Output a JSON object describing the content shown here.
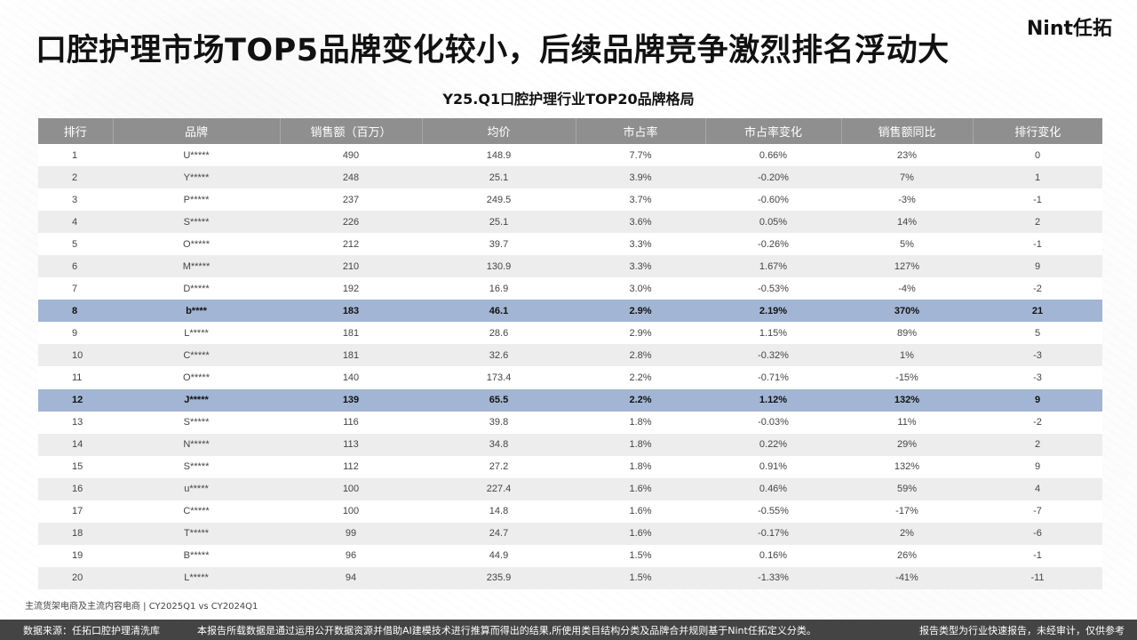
{
  "headline": "口腔护理市场TOP5品牌变化较小，后续品牌竞争激烈排名浮动大",
  "logo": "Nint任拓",
  "table_title": "Y25.Q1口腔护理行业TOP20品牌格局",
  "columns": [
    "排行",
    "品牌",
    "销售额（百万）",
    "均价",
    "市占率",
    "市占率变化",
    "销售额同比",
    "排行变化"
  ],
  "rows": [
    {
      "rank": "1",
      "brand": "U*****",
      "sales": "490",
      "price": "148.9",
      "share": "7.7%",
      "share_change": "0.66%",
      "yoy": "23%",
      "rank_change": "0"
    },
    {
      "rank": "2",
      "brand": "Y*****",
      "sales": "248",
      "price": "25.1",
      "share": "3.9%",
      "share_change": "-0.20%",
      "yoy": "7%",
      "rank_change": "1"
    },
    {
      "rank": "3",
      "brand": "P*****",
      "sales": "237",
      "price": "249.5",
      "share": "3.7%",
      "share_change": "-0.60%",
      "yoy": "-3%",
      "rank_change": "-1"
    },
    {
      "rank": "4",
      "brand": "S*****",
      "sales": "226",
      "price": "25.1",
      "share": "3.6%",
      "share_change": "0.05%",
      "yoy": "14%",
      "rank_change": "2"
    },
    {
      "rank": "5",
      "brand": "O*****",
      "sales": "212",
      "price": "39.7",
      "share": "3.3%",
      "share_change": "-0.26%",
      "yoy": "5%",
      "rank_change": "-1"
    },
    {
      "rank": "6",
      "brand": "M*****",
      "sales": "210",
      "price": "130.9",
      "share": "3.3%",
      "share_change": "1.67%",
      "yoy": "127%",
      "rank_change": "9"
    },
    {
      "rank": "7",
      "brand": "D*****",
      "sales": "192",
      "price": "16.9",
      "share": "3.0%",
      "share_change": "-0.53%",
      "yoy": "-4%",
      "rank_change": "-2"
    },
    {
      "rank": "8",
      "brand": "b****",
      "sales": "183",
      "price": "46.1",
      "share": "2.9%",
      "share_change": "2.19%",
      "yoy": "370%",
      "rank_change": "21",
      "highlight": true
    },
    {
      "rank": "9",
      "brand": "L*****",
      "sales": "181",
      "price": "28.6",
      "share": "2.9%",
      "share_change": "1.15%",
      "yoy": "89%",
      "rank_change": "5"
    },
    {
      "rank": "10",
      "brand": "C*****",
      "sales": "181",
      "price": "32.6",
      "share": "2.8%",
      "share_change": "-0.32%",
      "yoy": "1%",
      "rank_change": "-3"
    },
    {
      "rank": "11",
      "brand": "O*****",
      "sales": "140",
      "price": "173.4",
      "share": "2.2%",
      "share_change": "-0.71%",
      "yoy": "-15%",
      "rank_change": "-3"
    },
    {
      "rank": "12",
      "brand": "J*****",
      "sales": "139",
      "price": "65.5",
      "share": "2.2%",
      "share_change": "1.12%",
      "yoy": "132%",
      "rank_change": "9",
      "highlight": true
    },
    {
      "rank": "13",
      "brand": "S*****",
      "sales": "116",
      "price": "39.8",
      "share": "1.8%",
      "share_change": "-0.03%",
      "yoy": "11%",
      "rank_change": "-2"
    },
    {
      "rank": "14",
      "brand": "N*****",
      "sales": "113",
      "price": "34.8",
      "share": "1.8%",
      "share_change": "0.22%",
      "yoy": "29%",
      "rank_change": "2"
    },
    {
      "rank": "15",
      "brand": "S*****",
      "sales": "112",
      "price": "27.2",
      "share": "1.8%",
      "share_change": "0.91%",
      "yoy": "132%",
      "rank_change": "9"
    },
    {
      "rank": "16",
      "brand": "u*****",
      "sales": "100",
      "price": "227.4",
      "share": "1.6%",
      "share_change": "0.46%",
      "yoy": "59%",
      "rank_change": "4"
    },
    {
      "rank": "17",
      "brand": "C*****",
      "sales": "100",
      "price": "14.8",
      "share": "1.6%",
      "share_change": "-0.55%",
      "yoy": "-17%",
      "rank_change": "-7"
    },
    {
      "rank": "18",
      "brand": "T*****",
      "sales": "99",
      "price": "24.7",
      "share": "1.6%",
      "share_change": "-0.17%",
      "yoy": "2%",
      "rank_change": "-6"
    },
    {
      "rank": "19",
      "brand": "B*****",
      "sales": "96",
      "price": "44.9",
      "share": "1.5%",
      "share_change": "0.16%",
      "yoy": "26%",
      "rank_change": "-1"
    },
    {
      "rank": "20",
      "brand": "L*****",
      "sales": "94",
      "price": "235.9",
      "share": "1.5%",
      "share_change": "-1.33%",
      "yoy": "-41%",
      "rank_change": "-11"
    }
  ],
  "footnote": "主流货架电商及主流内容电商 | CY2025Q1 vs CY2024Q1",
  "footer": {
    "source": "数据来源：任拓口腔护理清洗库",
    "disclaimer": "本报告所载数据是通过运用公开数据资源并借助AI建模技术进行推算而得出的结果,所使用类目结构分类及品牌合并规则基于Nint任拓定义分类。",
    "report_type": "报告类型为行业快速报告，未经审计，仅供参考"
  },
  "colors": {
    "header_bg": "#8f8f8f",
    "highlight_row": "#a2b5d4",
    "footer_bg": "#444444"
  }
}
